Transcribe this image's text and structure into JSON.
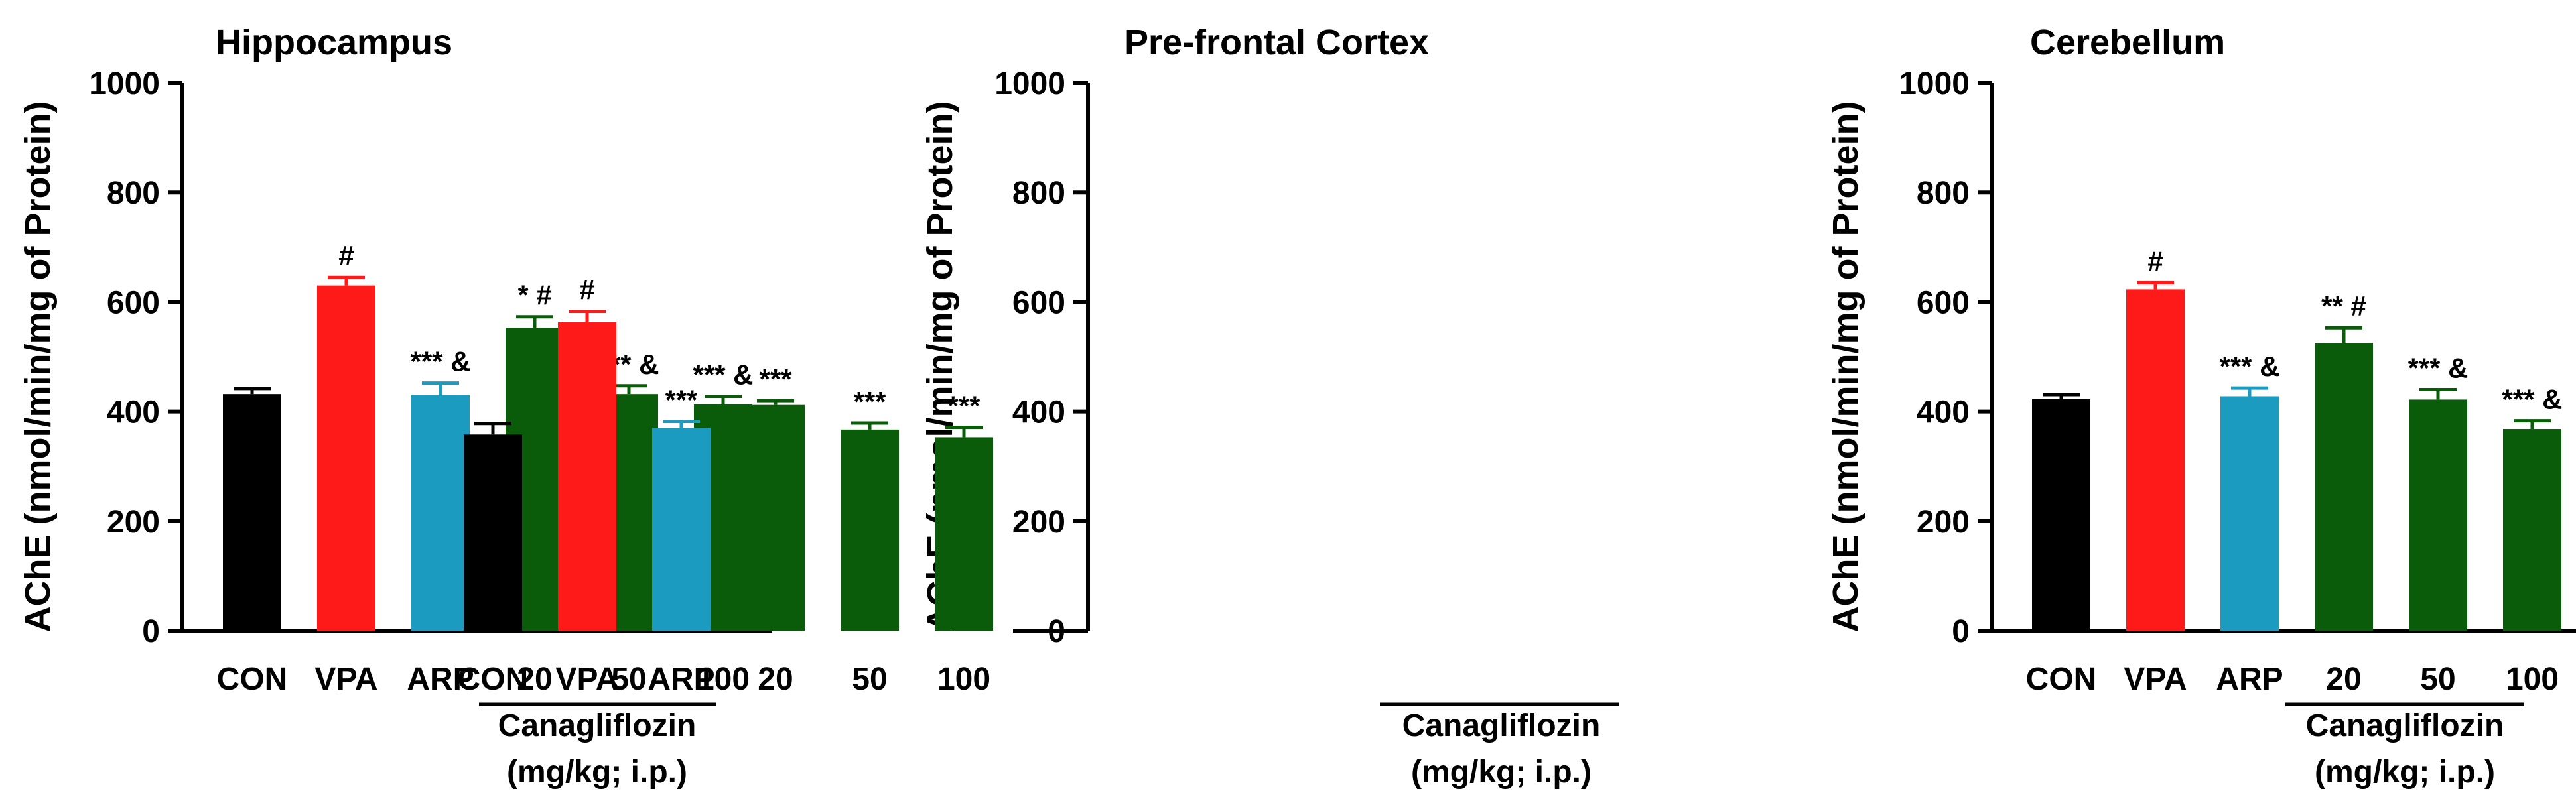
{
  "figure": {
    "panels": [
      {
        "title": "Hippocampus",
        "ylabel": "AChE (nmol/min/mg of Protein)",
        "group_label_line1": "Canagliflozin",
        "group_label_line2": "(mg/kg; i.p.)"
      },
      {
        "title": "Pre-frontal Cortex",
        "ylabel": "AChE (nmol/min/mg of Protein)",
        "group_label_line1": "Canagliflozin",
        "group_label_line2": "(mg/kg; i.p.)"
      },
      {
        "title": "Cerebellum",
        "ylabel": "AChE (nmol/min/mg of Protein)",
        "group_label_line1": "Canagliflozin",
        "group_label_line2": "(mg/kg; i.p.)"
      }
    ]
  },
  "colors": {
    "CON": "#000000",
    "VPA": "#ff1a1a",
    "ARP": "#1a9bbf",
    "canagliflozin": "#0a5c0a"
  },
  "chart_data": [
    {
      "type": "bar",
      "title": "Hippocampus",
      "ylabel": "AChE (nmol/min/mg of Protein)",
      "xlabel": "",
      "categories": [
        "CON",
        "VPA",
        "ARP",
        "20",
        "50",
        "100"
      ],
      "values": [
        432,
        630,
        430,
        553,
        432,
        413
      ],
      "errors": [
        10,
        15,
        22,
        20,
        15,
        15
      ],
      "annotations": [
        "",
        "#",
        "*** &",
        "* #",
        "*** &",
        "*** &"
      ],
      "group_label": "Canagliflozin (mg/kg; i.p.)",
      "ylim": [
        0,
        1000
      ],
      "yticks": [
        0,
        200,
        400,
        600,
        800,
        1000
      ]
    },
    {
      "type": "bar",
      "title": "Pre-frontal Cortex",
      "ylabel": "AChE (nmol/min/mg of Protein)",
      "xlabel": "",
      "categories": [
        "CON",
        "VPA",
        "ARP",
        "20",
        "50",
        "100"
      ],
      "values": [
        358,
        563,
        370,
        412,
        367,
        353
      ],
      "errors": [
        20,
        20,
        12,
        8,
        12,
        18
      ],
      "annotations": [
        "",
        "#",
        "***",
        "***",
        "***",
        "***"
      ],
      "group_label": "Canagliflozin (mg/kg; i.p.)",
      "ylim": [
        0,
        1000
      ],
      "yticks": [
        0,
        200,
        400,
        600,
        800,
        1000
      ]
    },
    {
      "type": "bar",
      "title": "Cerebellum",
      "ylabel": "AChE (nmol/min/mg of Protein)",
      "xlabel": "",
      "categories": [
        "CON",
        "VPA",
        "ARP",
        "20",
        "50",
        "100"
      ],
      "values": [
        423,
        623,
        428,
        525,
        422,
        368
      ],
      "errors": [
        8,
        12,
        15,
        28,
        18,
        15
      ],
      "annotations": [
        "",
        "#",
        "*** &",
        "** #",
        "*** &",
        "*** &"
      ],
      "group_label": "Canagliflozin (mg/kg; i.p.)",
      "ylim": [
        0,
        1000
      ],
      "yticks": [
        0,
        200,
        400,
        600,
        800,
        1000
      ]
    }
  ]
}
